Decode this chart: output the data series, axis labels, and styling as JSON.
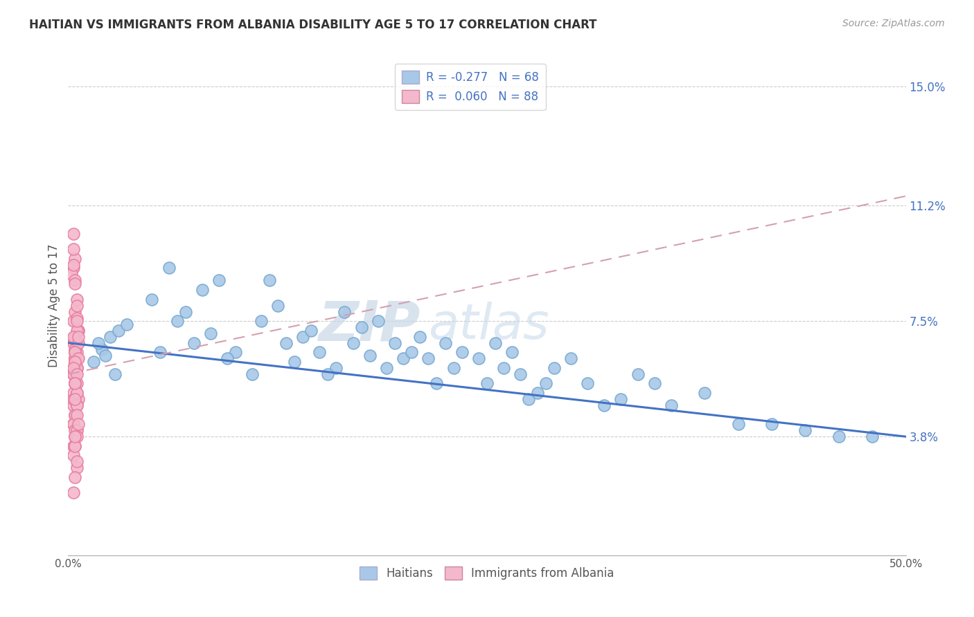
{
  "title": "HAITIAN VS IMMIGRANTS FROM ALBANIA DISABILITY AGE 5 TO 17 CORRELATION CHART",
  "source": "Source: ZipAtlas.com",
  "ylabel": "Disability Age 5 to 17",
  "xlim": [
    0.0,
    0.5
  ],
  "ylim": [
    0.0,
    0.16
  ],
  "yticks": [
    0.038,
    0.075,
    0.112,
    0.15
  ],
  "ytick_labels": [
    "3.8%",
    "7.5%",
    "11.2%",
    "15.0%"
  ],
  "xticks": [
    0.0,
    0.1,
    0.2,
    0.3,
    0.4,
    0.5
  ],
  "xtick_labels": [
    "0.0%",
    "",
    "",
    "",
    "",
    "50.0%"
  ],
  "haitian_color": "#a8c8e8",
  "haitian_edge_color": "#7aaad0",
  "albania_color": "#f4b8cc",
  "albania_edge_color": "#e87fa0",
  "trend_haitian_color": "#4472c4",
  "trend_albania_color": "#d4a0b0",
  "r_haitian": -0.277,
  "n_haitian": 68,
  "r_albania": 0.06,
  "n_albania": 88,
  "watermark_zip": "ZIP",
  "watermark_atlas": "atlas",
  "background_color": "#ffffff",
  "grid_color": "#cccccc",
  "haitian_x": [
    0.02,
    0.025,
    0.015,
    0.03,
    0.018,
    0.022,
    0.028,
    0.035,
    0.05,
    0.06,
    0.07,
    0.08,
    0.075,
    0.065,
    0.055,
    0.09,
    0.1,
    0.095,
    0.085,
    0.11,
    0.115,
    0.12,
    0.13,
    0.125,
    0.135,
    0.14,
    0.145,
    0.15,
    0.16,
    0.155,
    0.165,
    0.17,
    0.175,
    0.18,
    0.19,
    0.195,
    0.185,
    0.2,
    0.205,
    0.21,
    0.215,
    0.22,
    0.225,
    0.23,
    0.235,
    0.245,
    0.25,
    0.255,
    0.26,
    0.265,
    0.27,
    0.275,
    0.28,
    0.29,
    0.285,
    0.3,
    0.31,
    0.32,
    0.33,
    0.34,
    0.35,
    0.36,
    0.38,
    0.4,
    0.42,
    0.44,
    0.46,
    0.48
  ],
  "haitian_y": [
    0.066,
    0.07,
    0.062,
    0.072,
    0.068,
    0.064,
    0.058,
    0.074,
    0.082,
    0.092,
    0.078,
    0.085,
    0.068,
    0.075,
    0.065,
    0.088,
    0.065,
    0.063,
    0.071,
    0.058,
    0.075,
    0.088,
    0.068,
    0.08,
    0.062,
    0.07,
    0.072,
    0.065,
    0.06,
    0.058,
    0.078,
    0.068,
    0.073,
    0.064,
    0.06,
    0.068,
    0.075,
    0.063,
    0.065,
    0.07,
    0.063,
    0.055,
    0.068,
    0.06,
    0.065,
    0.063,
    0.055,
    0.068,
    0.06,
    0.065,
    0.058,
    0.05,
    0.052,
    0.06,
    0.055,
    0.063,
    0.055,
    0.048,
    0.05,
    0.058,
    0.055,
    0.048,
    0.052,
    0.042,
    0.042,
    0.04,
    0.038,
    0.038
  ],
  "albania_x": [
    0.003,
    0.004,
    0.003,
    0.002,
    0.004,
    0.003,
    0.005,
    0.003,
    0.004,
    0.004,
    0.003,
    0.005,
    0.004,
    0.003,
    0.006,
    0.004,
    0.005,
    0.005,
    0.004,
    0.003,
    0.005,
    0.004,
    0.006,
    0.004,
    0.003,
    0.005,
    0.004,
    0.003,
    0.005,
    0.004,
    0.005,
    0.004,
    0.003,
    0.006,
    0.004,
    0.005,
    0.004,
    0.003,
    0.005,
    0.004,
    0.006,
    0.004,
    0.005,
    0.003,
    0.004,
    0.005,
    0.004,
    0.003,
    0.005,
    0.004,
    0.006,
    0.004,
    0.003,
    0.005,
    0.004,
    0.004,
    0.003,
    0.005,
    0.004,
    0.006,
    0.005,
    0.004,
    0.003,
    0.005,
    0.004,
    0.004,
    0.003,
    0.005,
    0.004,
    0.003,
    0.005,
    0.004,
    0.003,
    0.005,
    0.004,
    0.003,
    0.004,
    0.005,
    0.004,
    0.003,
    0.005,
    0.004,
    0.006,
    0.004,
    0.005,
    0.003,
    0.004,
    0.005
  ],
  "albania_y": [
    0.103,
    0.095,
    0.092,
    0.09,
    0.088,
    0.098,
    0.082,
    0.093,
    0.087,
    0.078,
    0.075,
    0.076,
    0.07,
    0.068,
    0.072,
    0.065,
    0.08,
    0.068,
    0.063,
    0.06,
    0.065,
    0.062,
    0.072,
    0.055,
    0.058,
    0.068,
    0.063,
    0.058,
    0.06,
    0.066,
    0.072,
    0.065,
    0.07,
    0.068,
    0.062,
    0.075,
    0.063,
    0.058,
    0.06,
    0.065,
    0.07,
    0.058,
    0.055,
    0.052,
    0.06,
    0.063,
    0.065,
    0.058,
    0.06,
    0.055,
    0.063,
    0.05,
    0.048,
    0.052,
    0.055,
    0.062,
    0.06,
    0.058,
    0.055,
    0.05,
    0.048,
    0.045,
    0.05,
    0.052,
    0.055,
    0.045,
    0.042,
    0.048,
    0.05,
    0.042,
    0.04,
    0.038,
    0.042,
    0.045,
    0.04,
    0.035,
    0.038,
    0.04,
    0.035,
    0.032,
    0.038,
    0.035,
    0.042,
    0.038,
    0.028,
    0.02,
    0.025,
    0.03
  ]
}
